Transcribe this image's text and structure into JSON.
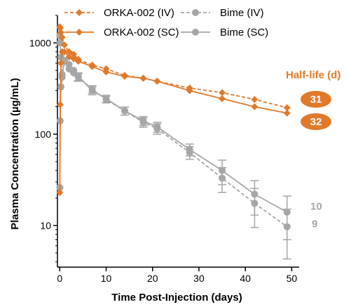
{
  "chart_data": {
    "type": "line",
    "xlabel": "Time Post-Injection (days)",
    "ylabel": "Plasma Concentration (µg/mL)",
    "x_scale": "linear",
    "y_scale": "log",
    "xlim": [
      -0.5,
      51
    ],
    "ylim": [
      3.5,
      2000
    ],
    "x_ticks": [
      0,
      10,
      20,
      30,
      40,
      50
    ],
    "y_ticks": [
      10,
      100,
      1000
    ],
    "x_tick_labels": [
      "0",
      "10",
      "20",
      "30",
      "40",
      "50"
    ],
    "y_tick_labels": [
      "10",
      "100",
      "1000"
    ],
    "grid": false,
    "legend_position": "top",
    "colors": {
      "orka": "#E07A2A",
      "bime": "#A6A6A6"
    },
    "series": [
      {
        "name": "ORKA-002 (IV)",
        "color": "#E07A2A",
        "marker": "diamond",
        "dashed": true,
        "x": [
          0.01,
          0.1,
          0.25,
          0.5,
          1,
          2,
          3,
          4,
          7,
          10,
          14,
          18,
          21,
          28,
          35,
          42,
          49
        ],
        "y": [
          1500,
          1450,
          1300,
          1150,
          950,
          800,
          750,
          660,
          570,
          520,
          440,
          410,
          380,
          320,
          285,
          240,
          195
        ]
      },
      {
        "name": "ORKA-002 (SC)",
        "color": "#E07A2A",
        "marker": "diamond",
        "dashed": false,
        "x": [
          0.01,
          0.1,
          0.25,
          0.5,
          1,
          2,
          3,
          4,
          7,
          10,
          14,
          18,
          21,
          28,
          35,
          42,
          49
        ],
        "y": [
          23,
          210,
          600,
          800,
          800,
          700,
          670,
          630,
          550,
          480,
          430,
          410,
          380,
          300,
          245,
          200,
          170
        ]
      },
      {
        "name": "Bime (IV)",
        "color": "#A6A6A6",
        "marker": "circle",
        "dashed": true,
        "x": [
          0.01,
          0.1,
          0.25,
          0.5,
          1,
          2,
          3,
          4,
          7,
          10,
          14,
          18,
          21,
          28,
          35,
          42,
          49
        ],
        "y": [
          1200,
          1000,
          700,
          450,
          630,
          520,
          470,
          420,
          310,
          240,
          180,
          135,
          115,
          63,
          33,
          17.5,
          9.7
        ],
        "err": [
          150,
          120,
          80,
          60,
          70,
          50,
          45,
          40,
          30,
          20,
          18,
          16,
          15,
          10,
          10,
          8,
          5.4
        ]
      },
      {
        "name": "Bime (SC)",
        "color": "#A6A6A6",
        "marker": "circle",
        "dashed": false,
        "x": [
          0.01,
          0.1,
          0.25,
          0.5,
          1,
          2,
          3,
          4,
          7,
          10,
          14,
          18,
          21,
          28,
          35,
          42,
          49
        ],
        "y": [
          26,
          140,
          330,
          420,
          640,
          580,
          500,
          430,
          300,
          245,
          180,
          140,
          120,
          68,
          40,
          22,
          14
        ],
        "err": [
          5,
          20,
          40,
          50,
          60,
          55,
          45,
          40,
          30,
          22,
          18,
          16,
          15,
          10,
          12,
          9,
          7
        ]
      }
    ],
    "annotations": {
      "halflife_title": "Half-life (d)",
      "orka_iv": "31",
      "orka_sc": "32",
      "bime_sc": "10",
      "bime_iv": "9"
    }
  }
}
